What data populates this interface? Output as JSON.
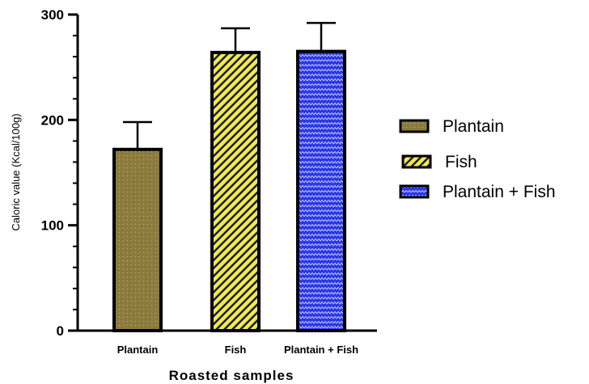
{
  "chart_data": {
    "type": "bar",
    "categories": [
      "Plantain",
      "Fish",
      "Plantain + Fish"
    ],
    "values": [
      172,
      264,
      265
    ],
    "error": [
      26,
      23,
      27
    ],
    "xlabel": "Roasted samples",
    "ylabel": "Caloric value (Kcal/100g)",
    "ylim": [
      0,
      300
    ],
    "yticks": [
      "0",
      "100",
      "200",
      "300"
    ],
    "legend": [
      "Plantain",
      "Fish",
      "Plantain + Fish"
    ],
    "legend_position": "right",
    "colors": [
      "#8a7a3c",
      "#f2ea4a",
      "#2a36e8"
    ],
    "patterns": [
      "dotted",
      "diagonal-stripes",
      "zigzag"
    ],
    "grid": false
  }
}
